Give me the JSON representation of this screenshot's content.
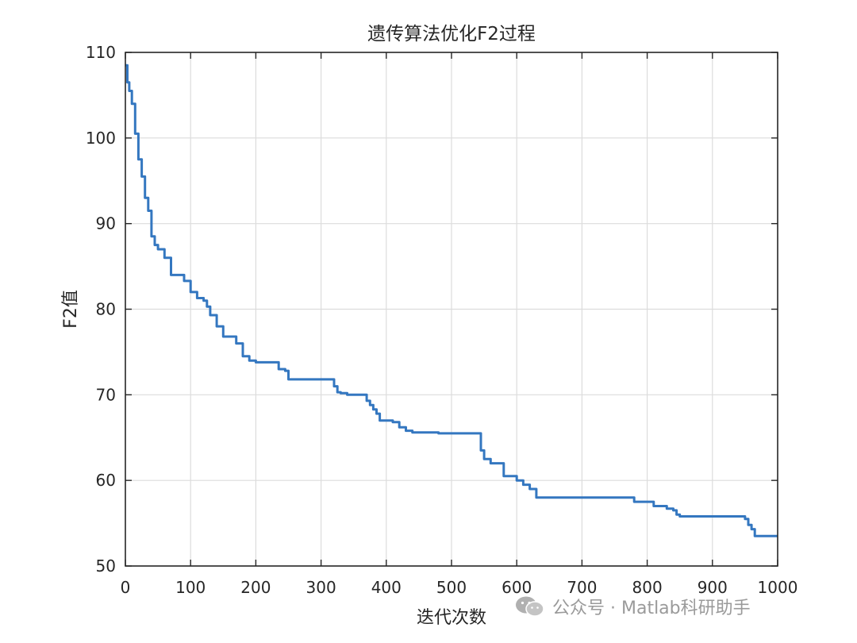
{
  "chart_data": {
    "type": "line",
    "title": "遗传算法优化F2过程",
    "xlabel": "迭代次数",
    "ylabel": "F2值",
    "xlim": [
      0,
      1000
    ],
    "ylim": [
      50,
      110
    ],
    "xticks": [
      0,
      100,
      200,
      300,
      400,
      500,
      600,
      700,
      800,
      900,
      1000
    ],
    "yticks": [
      50,
      60,
      70,
      80,
      90,
      100,
      110
    ],
    "grid": true,
    "series": [
      {
        "color": "#3477c0",
        "x": [
          0,
          3,
          6,
          10,
          15,
          20,
          25,
          30,
          35,
          40,
          45,
          50,
          60,
          70,
          80,
          90,
          100,
          110,
          120,
          125,
          130,
          140,
          150,
          160,
          170,
          180,
          190,
          200,
          220,
          235,
          245,
          250,
          260,
          280,
          300,
          315,
          320,
          325,
          330,
          340,
          350,
          365,
          370,
          375,
          380,
          385,
          390,
          400,
          410,
          420,
          430,
          440,
          460,
          480,
          500,
          520,
          540,
          545,
          550,
          560,
          570,
          580,
          590,
          600,
          610,
          620,
          625,
          630,
          650,
          700,
          750,
          775,
          780,
          790,
          800,
          810,
          820,
          830,
          840,
          845,
          850,
          900,
          940,
          945,
          950,
          955,
          960,
          965,
          1000
        ],
        "y": [
          108.5,
          106.5,
          105.5,
          104,
          100.5,
          97.5,
          95.5,
          93,
          91.5,
          88.5,
          87.5,
          87,
          86,
          84,
          84,
          83.3,
          82,
          81.3,
          81,
          80.3,
          79.3,
          78,
          76.8,
          76.8,
          76,
          74.5,
          74,
          73.8,
          73.8,
          73,
          72.8,
          71.8,
          71.8,
          71.8,
          71.8,
          71.8,
          71,
          70.3,
          70.2,
          70,
          70,
          70,
          69.3,
          68.8,
          68.3,
          67.8,
          67,
          67,
          66.8,
          66.2,
          65.8,
          65.6,
          65.6,
          65.5,
          65.5,
          65.5,
          65.5,
          63.5,
          62.5,
          62,
          62,
          60.5,
          60.5,
          60,
          59.5,
          59,
          59,
          58,
          58,
          58,
          58,
          58,
          57.5,
          57.5,
          57.5,
          57,
          57,
          56.7,
          56.5,
          56,
          55.8,
          55.8,
          55.8,
          55.8,
          55.5,
          54.8,
          54.3,
          53.5,
          53.5
        ]
      }
    ]
  },
  "watermark": {
    "text": "公众号 · Matlab科研助手",
    "icon": "wechat-icon"
  }
}
